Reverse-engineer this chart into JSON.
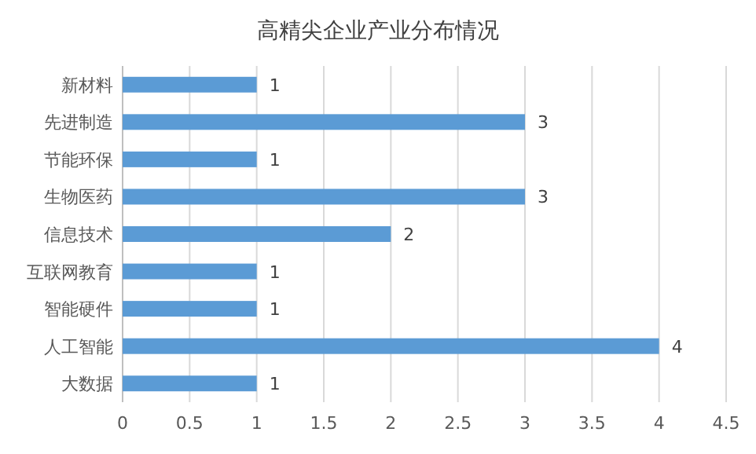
{
  "chart_data": {
    "type": "bar",
    "orientation": "horizontal",
    "title": "高精尖企业产业分布情况",
    "categories": [
      "新材料",
      "先进制造",
      "节能环保",
      "生物医药",
      "信息技术",
      "互联网教育",
      "智能硬件",
      "人工智能",
      "大数据"
    ],
    "values": [
      1,
      3,
      1,
      3,
      2,
      1,
      1,
      4,
      1
    ],
    "color": "#5b9bd5",
    "xlim": [
      0,
      4.5
    ],
    "xticks": [
      0,
      0.5,
      1,
      1.5,
      2,
      2.5,
      3,
      3.5,
      4,
      4.5
    ],
    "grid": "x",
    "data_labels": true
  }
}
